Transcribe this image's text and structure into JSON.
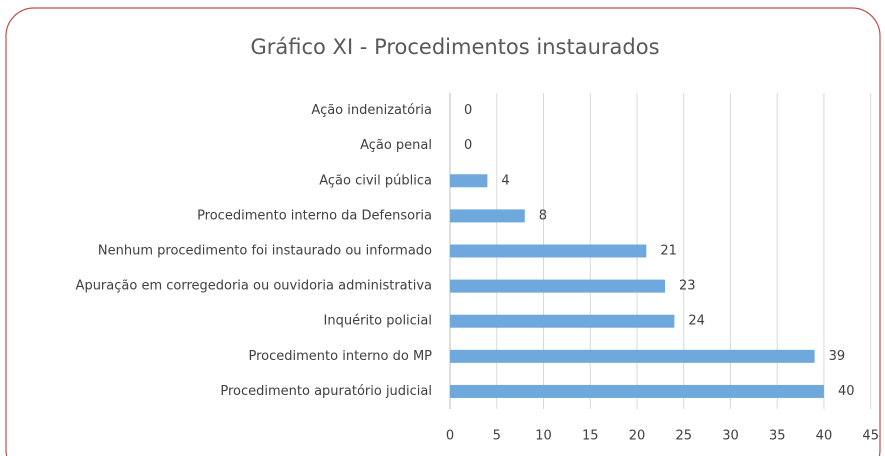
{
  "chart_data": {
    "type": "bar",
    "orientation": "horizontal",
    "title": "Gráfico XI - Procedimentos instaurados",
    "categories": [
      "Ação indenizatória",
      "Ação penal",
      "Ação civil pública",
      "Procedimento interno da Defensoria",
      "Nenhum procedimento foi instaurado ou informado",
      "Apuração em corregedoria ou ouvidoria administrativa",
      "Inquérito policial",
      "Procedimento interno do MP",
      "Procedimento apuratório judicial"
    ],
    "values": [
      0,
      0,
      4,
      8,
      21,
      23,
      24,
      39,
      40
    ],
    "color": "#6fa8dc",
    "xlim": [
      0,
      45
    ],
    "xticks": [
      0,
      5,
      10,
      15,
      20,
      25,
      30,
      35,
      40,
      45
    ],
    "grid": true
  }
}
